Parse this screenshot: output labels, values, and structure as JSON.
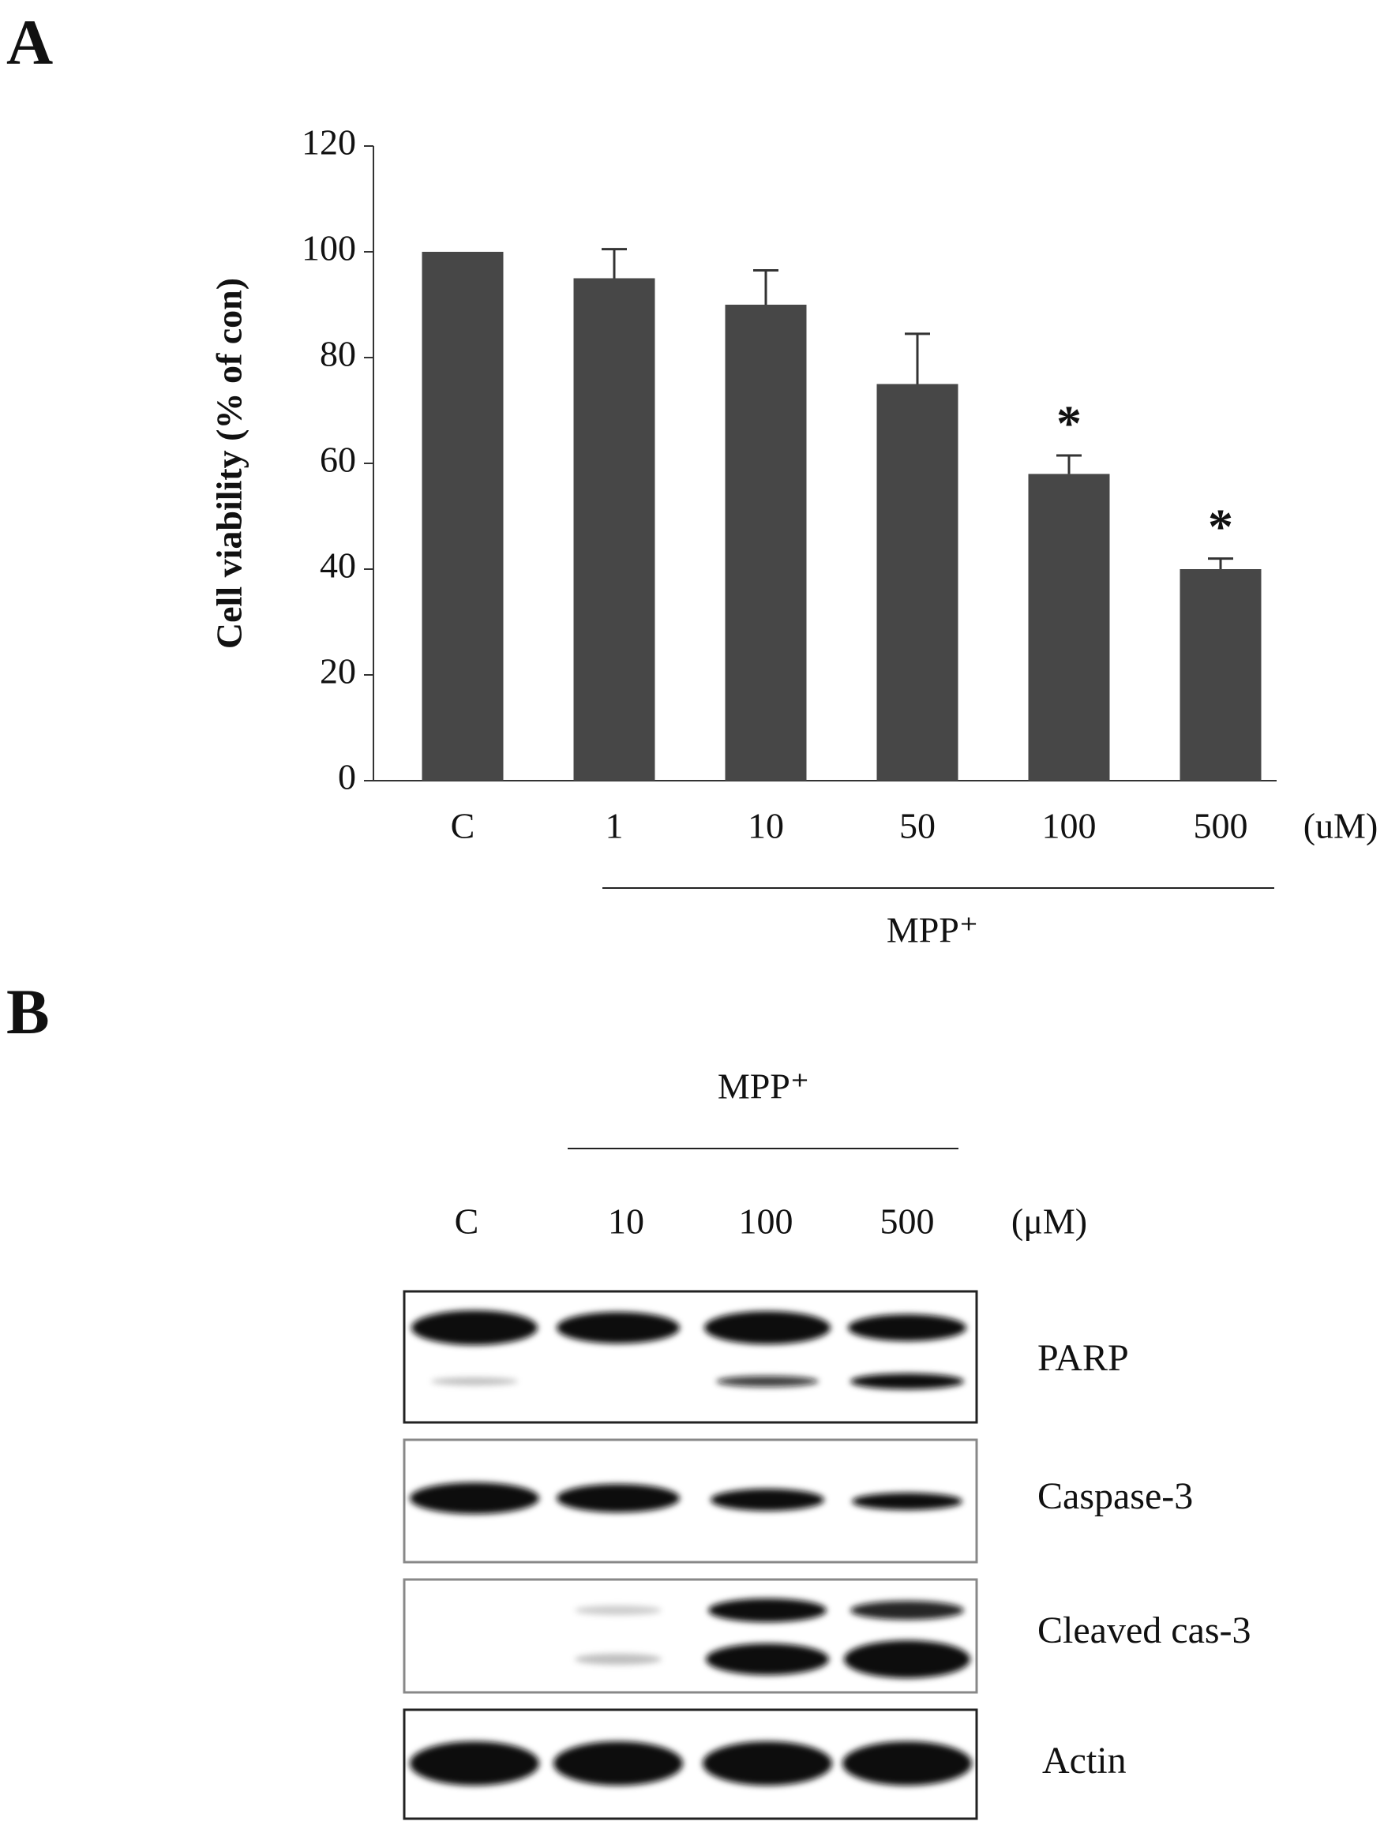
{
  "panel_labels": [
    "A",
    "B"
  ],
  "chart_data": {
    "type": "bar",
    "y_label": "Cell viability (% of con)",
    "categories": [
      "C",
      "1",
      "10",
      "50",
      "100",
      "500"
    ],
    "values": [
      100,
      95,
      90,
      75,
      58,
      40
    ],
    "errors": [
      null,
      5.5,
      6.5,
      9.5,
      3.5,
      2
    ],
    "value_annotations": [
      null,
      null,
      null,
      null,
      "*",
      "*"
    ],
    "unit_label": "(uM)",
    "group_label": "MPP⁺",
    "color": "#474747",
    "ylim": [
      0,
      120
    ],
    "yticks": [
      0,
      20,
      40,
      60,
      80,
      100,
      120
    ],
    "grid": false
  },
  "blot": {
    "group_label": "MPP⁺",
    "lanes": [
      "C",
      "10",
      "100",
      "500"
    ],
    "unit_label": "(μM)",
    "rows": [
      "PARP",
      "Caspase-3",
      "Cleaved cas-3",
      "Actin"
    ]
  }
}
